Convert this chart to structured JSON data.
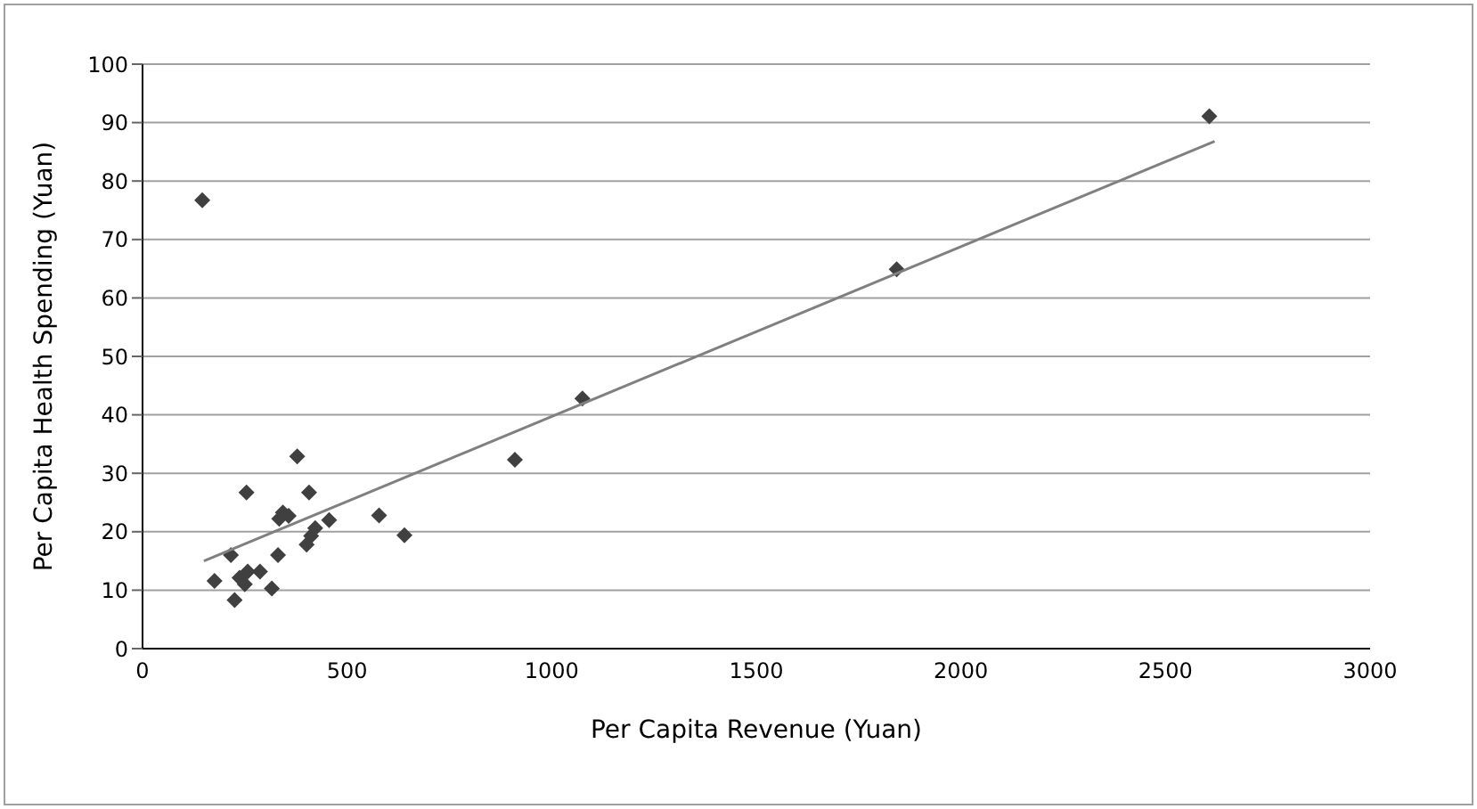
{
  "chart_data": {
    "type": "scatter",
    "xlabel": "Per Capita Revenue (Yuan)",
    "ylabel": "Per Capita Health Spending (Yuan)",
    "xlim": [
      0,
      3000
    ],
    "xticks": [
      0,
      500,
      1000,
      1500,
      2000,
      2500,
      3000
    ],
    "ylim": [
      0,
      100
    ],
    "yticks": [
      0,
      10,
      20,
      30,
      40,
      50,
      60,
      70,
      80,
      90,
      100
    ],
    "grid": "y",
    "legend": false,
    "series": [
      {
        "color": "#404040",
        "marker": "diamond",
        "x": [
          146,
          176,
          216,
          225,
          254,
          237,
          250,
          257,
          287,
          316,
          331,
          334,
          357,
          378,
          407,
          401,
          412,
          422,
          456,
          343,
          578,
          640,
          910,
          1075,
          1843,
          2607
        ],
        "values": [
          76.7,
          11.6,
          16,
          8.3,
          26.7,
          12.1,
          11,
          13.2,
          13.2,
          10.3,
          16,
          22.2,
          22.7,
          32.9,
          26.7,
          17.8,
          19.3,
          20.6,
          22,
          23.3,
          22.8,
          19.4,
          32.3,
          42.8,
          64.9,
          91.1
        ]
      },
      {
        "type": "line",
        "color": "#808080",
        "marker": "none",
        "x": [
          150,
          2620
        ],
        "values": [
          15,
          86.8
        ]
      }
    ]
  }
}
